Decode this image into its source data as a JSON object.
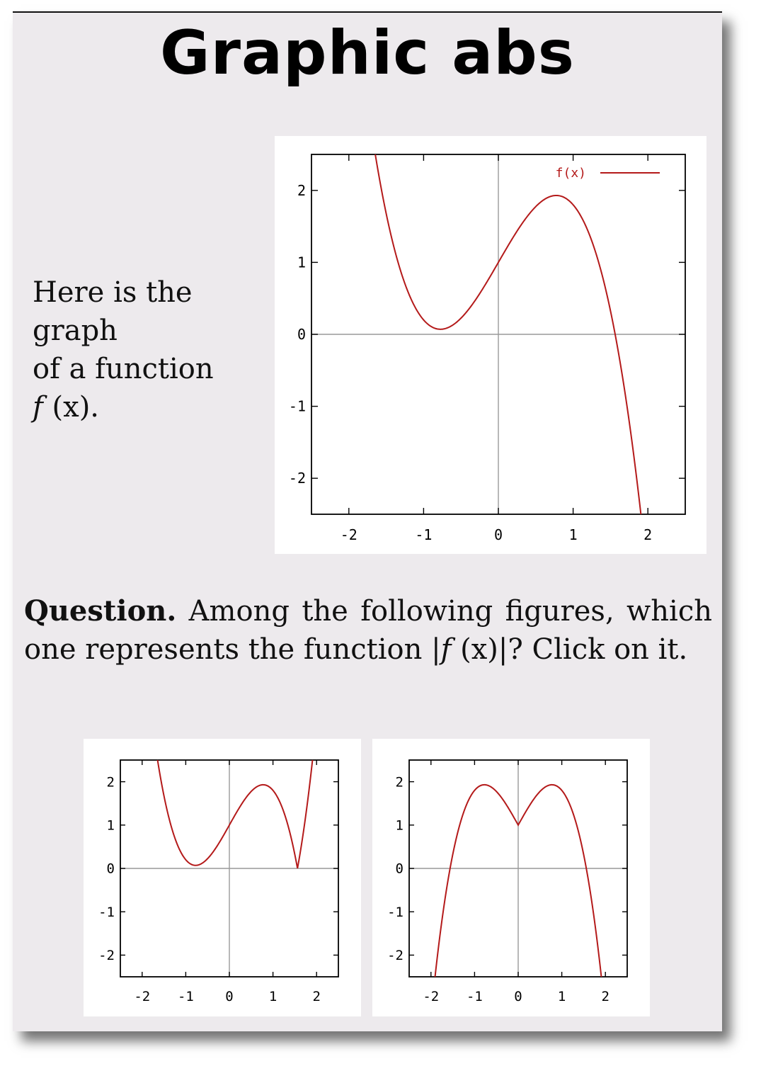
{
  "title": "Graphic abs",
  "intro": {
    "line1": "Here is the",
    "line2": "graph",
    "line3": "of a function",
    "fn_name": "f",
    "fn_arg": "(x)."
  },
  "question": {
    "label": "Question.",
    "text": "Among the following figures, which one represents the function",
    "fn_open": "|",
    "fn_name": "f",
    "fn_arg": "(x)|?",
    "tail": "Click on it."
  },
  "colors": {
    "curve": "#b41a1a",
    "axis": "#999999",
    "frame": "#000000"
  },
  "chart_data": [
    {
      "type": "line",
      "role": "given graph",
      "xlim": [
        -2.5,
        2.5
      ],
      "ylim": [
        -2.5,
        2.5
      ],
      "xticks": [
        -2,
        -1,
        0,
        1,
        2
      ],
      "yticks": [
        -2,
        -1,
        0,
        1,
        2
      ],
      "xtick_labels": [
        "-2",
        "-1",
        "0",
        "1",
        "2"
      ],
      "ytick_labels": [
        "-2",
        "-1",
        "0",
        "1",
        "2"
      ],
      "legend": {
        "label": "f(x)",
        "position": "top-right"
      },
      "series": [
        {
          "name": "f(x)",
          "expr": "-x^3 + 1.8x + 1",
          "transform": "none"
        }
      ]
    },
    {
      "type": "line",
      "role": "answer option",
      "xlim": [
        -2.5,
        2.5
      ],
      "ylim": [
        -2.5,
        2.5
      ],
      "xticks": [
        -2,
        -1,
        0,
        1,
        2
      ],
      "yticks": [
        -2,
        -1,
        0,
        1,
        2
      ],
      "xtick_labels": [
        "-2",
        "-1",
        "0",
        "1",
        "2"
      ],
      "ytick_labels": [
        "-2",
        "-1",
        "0",
        "1",
        "2"
      ],
      "series": [
        {
          "expr": "|-x^3 + 1.8x + 1|",
          "transform": "abs"
        }
      ]
    },
    {
      "type": "line",
      "role": "answer option",
      "xlim": [
        -2.5,
        2.5
      ],
      "ylim": [
        -2.5,
        2.5
      ],
      "xticks": [
        -2,
        -1,
        0,
        1,
        2
      ],
      "yticks": [
        -2,
        -1,
        0,
        1,
        2
      ],
      "xtick_labels": [
        "-2",
        "-1",
        "0",
        "1",
        "2"
      ],
      "ytick_labels": [
        "-2",
        "-1",
        "0",
        "1",
        "2"
      ],
      "series": [
        {
          "expr": "-|x|^3 + 1.8|x| + 1",
          "transform": "absx"
        }
      ]
    }
  ]
}
